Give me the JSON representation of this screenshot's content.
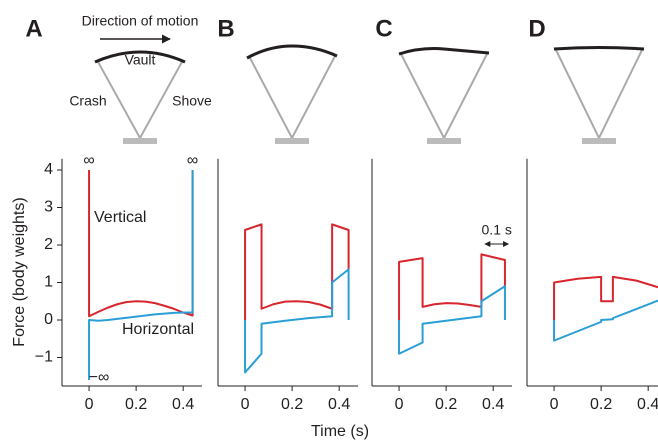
{
  "figure": {
    "ylabel": "Force (body weights)",
    "xlabel": "Time (s)",
    "diagram": {
      "direction": "Direction of motion",
      "top": "Vault",
      "left": "Crash",
      "right": "Shove"
    }
  },
  "chart_data": [
    {
      "type": "line",
      "label": "A",
      "xlim": [
        -0.115,
        0.48
      ],
      "ylim": [
        -1.7,
        4.3
      ],
      "xticks": [
        0,
        0.2,
        0.4
      ],
      "yticks": [
        4,
        3,
        2,
        1,
        0,
        {
          "value": -1,
          "label": "−1"
        }
      ],
      "annotations": [
        "∞",
        "∞",
        "−∞"
      ],
      "series": [
        {
          "name": "Vertical",
          "color": "#d7262d",
          "x": [
            0,
            0,
            0.04,
            0.08,
            0.12,
            0.16,
            0.2,
            0.24,
            0.28,
            0.32,
            0.36,
            0.4,
            0.44,
            0.44
          ],
          "values": [
            4,
            0.1,
            0.22,
            0.33,
            0.42,
            0.48,
            0.5,
            0.49,
            0.45,
            0.38,
            0.3,
            0.2,
            0.12,
            4
          ]
        },
        {
          "name": "Horizontal",
          "color": "#2a9fd6",
          "x": [
            0,
            0,
            0.04,
            0.08,
            0.12,
            0.16,
            0.2,
            0.24,
            0.28,
            0.32,
            0.36,
            0.4,
            0.44,
            0.44
          ],
          "values": [
            -1.6,
            0.0,
            -0.02,
            0.0,
            0.03,
            0.06,
            0.09,
            0.12,
            0.15,
            0.17,
            0.19,
            0.2,
            0.2,
            4
          ]
        }
      ]
    },
    {
      "type": "line",
      "label": "B",
      "xlim": [
        -0.115,
        0.48
      ],
      "ylim": [
        -1.7,
        4.3
      ],
      "xticks": [
        0,
        0.2,
        0.4
      ],
      "series": [
        {
          "color": "#d7262d",
          "x": [
            0,
            0,
            0.07,
            0.07,
            0.12,
            0.17,
            0.22,
            0.27,
            0.32,
            0.37,
            0.37,
            0.44,
            0.44
          ],
          "values": [
            0,
            2.4,
            2.55,
            0.3,
            0.42,
            0.49,
            0.5,
            0.48,
            0.41,
            0.3,
            2.55,
            2.4,
            1.35
          ]
        },
        {
          "color": "#2a9fd6",
          "x": [
            0,
            0,
            0.07,
            0.07,
            0.17,
            0.27,
            0.37,
            0.37,
            0.44,
            0.44
          ],
          "values": [
            0,
            -1.4,
            -0.9,
            -0.1,
            -0.02,
            0.05,
            0.1,
            1.0,
            1.35,
            0
          ]
        }
      ]
    },
    {
      "type": "line",
      "label": "C",
      "xlim": [
        -0.115,
        0.48
      ],
      "ylim": [
        -1.7,
        4.3
      ],
      "xticks": [
        0,
        0.2,
        0.4
      ],
      "annotations": [
        "0.1 s"
      ],
      "series": [
        {
          "color": "#d7262d",
          "x": [
            0,
            0,
            0.1,
            0.1,
            0.15,
            0.2,
            0.25,
            0.3,
            0.35,
            0.35,
            0.45,
            0.45
          ],
          "values": [
            0,
            1.55,
            1.65,
            0.35,
            0.42,
            0.45,
            0.44,
            0.4,
            0.35,
            1.75,
            1.6,
            0.9
          ]
        },
        {
          "color": "#2a9fd6",
          "x": [
            0,
            0,
            0.1,
            0.1,
            0.2,
            0.35,
            0.35,
            0.45,
            0.45
          ],
          "values": [
            0,
            -0.9,
            -0.6,
            -0.1,
            -0.02,
            0.1,
            0.5,
            0.9,
            0
          ]
        }
      ]
    },
    {
      "type": "line",
      "label": "D",
      "xlim": [
        -0.115,
        0.48
      ],
      "ylim": [
        -1.7,
        4.3
      ],
      "xticks": [
        0,
        0.2,
        0.4
      ],
      "series": [
        {
          "color": "#d7262d",
          "x": [
            0,
            0,
            0.1,
            0.2,
            0.2,
            0.25,
            0.25,
            0.35,
            0.455,
            0.455
          ],
          "values": [
            0,
            1.0,
            1.1,
            1.15,
            0.5,
            0.5,
            1.15,
            1.05,
            0.85,
            0.55
          ]
        },
        {
          "color": "#2a9fd6",
          "x": [
            0,
            0,
            0.2,
            0.2,
            0.25,
            0.25,
            0.455,
            0.455
          ],
          "values": [
            0,
            -0.55,
            -0.05,
            0.0,
            0.02,
            0.05,
            0.55,
            0
          ]
        }
      ]
    }
  ]
}
